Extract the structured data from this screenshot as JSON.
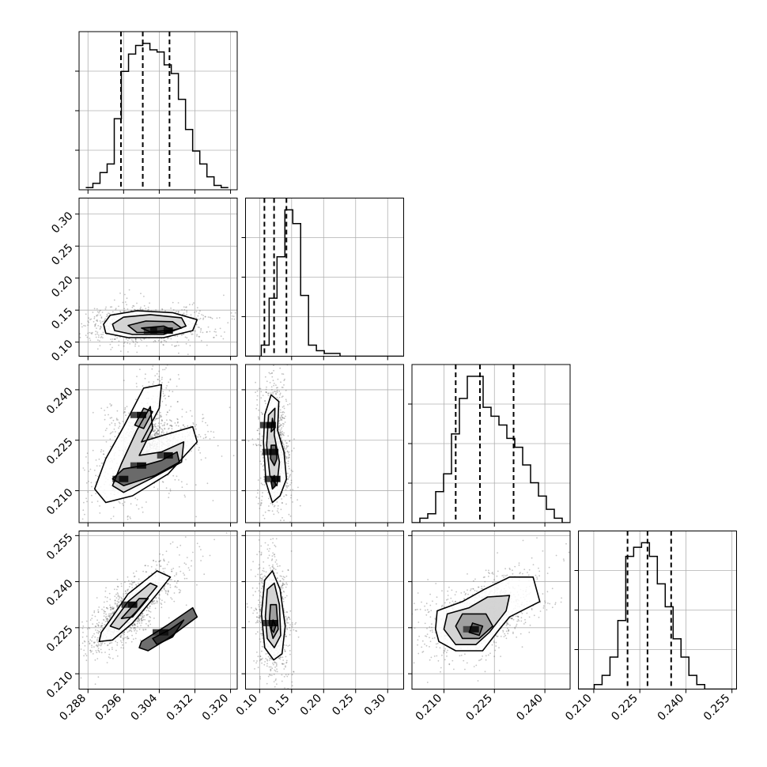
{
  "chart_data": {
    "type": "corner",
    "parameters": [
      {
        "range": [
          0.286,
          0.3215
        ],
        "ticks": [
          0.288,
          0.296,
          0.304,
          0.312,
          0.32
        ],
        "tick_labels": [
          "0.288",
          "0.296",
          "0.304",
          "0.312",
          "0.320"
        ],
        "quantiles": [
          0.2954,
          0.3003,
          0.3063
        ],
        "mean": 0.3008,
        "sd": 0.0062
      },
      {
        "range": [
          0.078,
          0.325
        ],
        "ticks": [
          0.1,
          0.15,
          0.2,
          0.25,
          0.3
        ],
        "tick_labels": [
          "0.10",
          "0.15",
          "0.20",
          "0.25",
          "0.30"
        ],
        "quantiles": [
          0.1075,
          0.1226,
          0.1419
        ],
        "mean": 0.1255,
        "sd": 0.0185
      },
      {
        "range": [
          0.2005,
          0.2475
        ],
        "ticks": [
          0.21,
          0.225,
          0.24
        ],
        "tick_labels": [
          "0.210",
          "0.225",
          "0.240"
        ],
        "quantiles": [
          0.2135,
          0.2207,
          0.2307
        ],
        "mean": 0.2215,
        "sd": 0.0083
      },
      {
        "range": [
          0.205,
          0.2565
        ],
        "ticks": [
          0.21,
          0.225,
          0.24,
          0.255
        ],
        "tick_labels": [
          "0.210",
          "0.225",
          "0.240",
          "0.255"
        ],
        "quantiles": [
          0.221,
          0.2275,
          0.2352
        ],
        "mean": 0.2283,
        "sd": 0.006
      }
    ],
    "histograms": [
      {
        "param": 0,
        "edges_start": 0.2875,
        "bin_width": 0.0016,
        "counts": [
          1,
          3,
          8,
          12,
          33,
          55,
          63,
          67,
          68,
          65,
          64,
          58,
          54,
          42,
          28,
          18,
          12,
          6,
          2,
          1
        ]
      },
      {
        "param": 1,
        "edges_start": 0.078,
        "bin_width": 0.0123,
        "counts": [
          0,
          0,
          4,
          21,
          36,
          53,
          48,
          22,
          4,
          2,
          1,
          1,
          0,
          0,
          0,
          0,
          0,
          0,
          0,
          0
        ]
      },
      {
        "param": 2,
        "edges_start": 0.2005,
        "bin_width": 0.00235,
        "counts": [
          0,
          1,
          2,
          7,
          11,
          20,
          28,
          33,
          33,
          26,
          24,
          22,
          19,
          17,
          13,
          9,
          6,
          3,
          1,
          0
        ]
      },
      {
        "param": 3,
        "edges_start": 0.205,
        "bin_width": 0.00257,
        "counts": [
          0,
          0,
          1,
          3,
          7,
          15,
          29,
          31,
          32,
          29,
          23,
          18,
          11,
          7,
          3,
          1,
          0,
          0,
          0,
          0
        ]
      }
    ],
    "pairs": [
      {
        "x_param": 0,
        "y_param": 1,
        "peaks": [
          [
            0.303,
            0.118
          ],
          [
            0.306,
            0.118
          ]
        ],
        "contours": [
          [
            [
              0.2915,
              0.128
            ],
            [
              0.293,
              0.142
            ],
            [
              0.299,
              0.149
            ],
            [
              0.307,
              0.146
            ],
            [
              0.3125,
              0.135
            ],
            [
              0.3115,
              0.118
            ],
            [
              0.305,
              0.107
            ],
            [
              0.297,
              0.107
            ],
            [
              0.292,
              0.114
            ]
          ],
          [
            [
              0.2935,
              0.128
            ],
            [
              0.296,
              0.139
            ],
            [
              0.302,
              0.143
            ],
            [
              0.309,
              0.138
            ],
            [
              0.31,
              0.125
            ],
            [
              0.305,
              0.112
            ],
            [
              0.298,
              0.112
            ],
            [
              0.294,
              0.118
            ]
          ],
          [
            [
              0.297,
              0.126
            ],
            [
              0.301,
              0.133
            ],
            [
              0.307,
              0.132
            ],
            [
              0.309,
              0.122
            ],
            [
              0.305,
              0.115
            ],
            [
              0.299,
              0.115
            ]
          ],
          [
            [
              0.3,
              0.122
            ],
            [
              0.305,
              0.125
            ],
            [
              0.307,
              0.119
            ],
            [
              0.302,
              0.116
            ]
          ]
        ]
      },
      {
        "x_param": 0,
        "y_param": 2,
        "peaks": [
          [
            0.296,
            0.2135
          ],
          [
            0.3,
            0.2175
          ],
          [
            0.306,
            0.2205
          ],
          [
            0.3,
            0.2325
          ]
        ],
        "contours": [
          [
            [
              0.2895,
              0.2105
            ],
            [
              0.292,
              0.2195
            ],
            [
              0.296,
              0.229
            ],
            [
              0.3005,
              0.2405
            ],
            [
              0.3045,
              0.2415
            ],
            [
              0.304,
              0.2345
            ],
            [
              0.3,
              0.2245
            ],
            [
              0.305,
              0.2265
            ],
            [
              0.3115,
              0.229
            ],
            [
              0.3125,
              0.2245
            ],
            [
              0.306,
              0.215
            ],
            [
              0.298,
              0.2085
            ],
            [
              0.292,
              0.2065
            ]
          ],
          [
            [
              0.2935,
              0.2115
            ],
            [
              0.2955,
              0.218
            ],
            [
              0.299,
              0.228
            ],
            [
              0.302,
              0.235
            ],
            [
              0.3025,
              0.2285
            ],
            [
              0.2995,
              0.2205
            ],
            [
              0.3045,
              0.2215
            ],
            [
              0.3095,
              0.2245
            ],
            [
              0.309,
              0.2185
            ],
            [
              0.302,
              0.2135
            ],
            [
              0.296,
              0.2095
            ]
          ],
          [
            [
              0.2985,
              0.2295
            ],
            [
              0.3005,
              0.2345
            ],
            [
              0.3025,
              0.2335
            ],
            [
              0.3005,
              0.2285
            ]
          ],
          [
            [
              0.2935,
              0.2135
            ],
            [
              0.296,
              0.2165
            ],
            [
              0.3005,
              0.2175
            ],
            [
              0.3045,
              0.219
            ],
            [
              0.308,
              0.2215
            ],
            [
              0.3085,
              0.2185
            ],
            [
              0.303,
              0.2145
            ],
            [
              0.296,
              0.2115
            ]
          ]
        ]
      },
      {
        "x_param": 0,
        "y_param": 3,
        "peaks": [
          [
            0.298,
            0.2325
          ],
          [
            0.305,
            0.2235
          ]
        ],
        "contours": [
          [
            [
              0.291,
              0.2235
            ],
            [
              0.293,
              0.2275
            ],
            [
              0.297,
              0.236
            ],
            [
              0.3035,
              0.2435
            ],
            [
              0.3065,
              0.2415
            ],
            [
              0.3035,
              0.236
            ],
            [
              0.298,
              0.2265
            ],
            [
              0.2935,
              0.221
            ],
            [
              0.2905,
              0.2205
            ]
          ],
          [
            [
              0.293,
              0.2255
            ],
            [
              0.297,
              0.2335
            ],
            [
              0.302,
              0.2395
            ],
            [
              0.3035,
              0.2385
            ],
            [
              0.299,
              0.2305
            ],
            [
              0.295,
              0.2245
            ]
          ],
          [
            [
              0.2955,
              0.228
            ],
            [
              0.2995,
              0.2345
            ],
            [
              0.3015,
              0.2345
            ],
            [
              0.298,
              0.2285
            ]
          ],
          [
            [
              0.3,
              0.2205
            ],
            [
              0.306,
              0.226
            ],
            [
              0.3115,
              0.2315
            ],
            [
              0.3125,
              0.2285
            ],
            [
              0.306,
              0.2215
            ],
            [
              0.3015,
              0.2175
            ],
            [
              0.2995,
              0.2185
            ]
          ],
          [
            [
              0.3025,
              0.2215
            ],
            [
              0.3065,
              0.2245
            ],
            [
              0.3095,
              0.2275
            ],
            [
              0.307,
              0.222
            ],
            [
              0.3035,
              0.2195
            ]
          ]
        ]
      },
      {
        "x_param": 1,
        "y_param": 2,
        "peaks": [
          [
            0.122,
            0.2215
          ],
          [
            0.118,
            0.2295
          ],
          [
            0.125,
            0.2135
          ]
        ],
        "contours": [
          [
            [
              0.106,
              0.2245
            ],
            [
              0.108,
              0.2325
            ],
            [
              0.118,
              0.2385
            ],
            [
              0.13,
              0.2365
            ],
            [
              0.128,
              0.228
            ],
            [
              0.138,
              0.2215
            ],
            [
              0.142,
              0.2135
            ],
            [
              0.132,
              0.2085
            ],
            [
              0.12,
              0.2065
            ],
            [
              0.11,
              0.2125
            ]
          ],
          [
            [
              0.111,
              0.2235
            ],
            [
              0.114,
              0.2325
            ],
            [
              0.124,
              0.2345
            ],
            [
              0.123,
              0.2265
            ],
            [
              0.131,
              0.2185
            ],
            [
              0.127,
              0.2115
            ],
            [
              0.116,
              0.2145
            ]
          ],
          [
            [
              0.118,
              0.2275
            ],
            [
              0.12,
              0.2315
            ],
            [
              0.123,
              0.2285
            ]
          ],
          [
            [
              0.117,
              0.2195
            ],
            [
              0.118,
              0.2235
            ],
            [
              0.125,
              0.2235
            ],
            [
              0.127,
              0.2195
            ],
            [
              0.123,
              0.2175
            ]
          ],
          [
            [
              0.118,
              0.2125
            ],
            [
              0.123,
              0.2145
            ],
            [
              0.125,
              0.2115
            ],
            [
              0.12,
              0.2105
            ]
          ]
        ]
      },
      {
        "x_param": 1,
        "y_param": 3,
        "peaks": [
          [
            0.122,
            0.2265
          ]
        ],
        "contours": [
          [
            [
              0.103,
              0.2295
            ],
            [
              0.108,
              0.2405
            ],
            [
              0.12,
              0.2435
            ],
            [
              0.132,
              0.2375
            ],
            [
              0.14,
              0.2255
            ],
            [
              0.135,
              0.2165
            ],
            [
              0.122,
              0.2145
            ],
            [
              0.108,
              0.2185
            ]
          ],
          [
            [
              0.109,
              0.2285
            ],
            [
              0.112,
              0.2375
            ],
            [
              0.123,
              0.2395
            ],
            [
              0.131,
              0.2325
            ],
            [
              0.133,
              0.2225
            ],
            [
              0.123,
              0.2185
            ],
            [
              0.112,
              0.2215
            ]
          ],
          [
            [
              0.115,
              0.2265
            ],
            [
              0.117,
              0.2325
            ],
            [
              0.126,
              0.2325
            ],
            [
              0.129,
              0.2245
            ],
            [
              0.121,
              0.2215
            ]
          ],
          [
            [
              0.118,
              0.2245
            ],
            [
              0.121,
              0.2275
            ],
            [
              0.125,
              0.2255
            ],
            [
              0.122,
              0.2235
            ]
          ]
        ]
      },
      {
        "x_param": 2,
        "y_param": 3,
        "peaks": [
          [
            0.219,
            0.2245
          ]
        ],
        "contours": [
          [
            [
              0.2075,
              0.2245
            ],
            [
              0.208,
              0.2305
            ],
            [
              0.2155,
              0.2335
            ],
            [
              0.222,
              0.2375
            ],
            [
              0.2295,
              0.2415
            ],
            [
              0.2365,
              0.2415
            ],
            [
              0.2385,
              0.2335
            ],
            [
              0.2295,
              0.2285
            ],
            [
              0.2265,
              0.2245
            ],
            [
              0.2215,
              0.2175
            ],
            [
              0.2135,
              0.2175
            ],
            [
              0.2085,
              0.2205
            ]
          ],
          [
            [
              0.21,
              0.2245
            ],
            [
              0.211,
              0.2295
            ],
            [
              0.2175,
              0.2315
            ],
            [
              0.223,
              0.235
            ],
            [
              0.2295,
              0.2355
            ],
            [
              0.2285,
              0.2305
            ],
            [
              0.2235,
              0.2235
            ],
            [
              0.2195,
              0.2195
            ],
            [
              0.2135,
              0.2195
            ]
          ],
          [
            [
              0.2135,
              0.2255
            ],
            [
              0.2155,
              0.2295
            ],
            [
              0.2225,
              0.2295
            ],
            [
              0.2245,
              0.2255
            ],
            [
              0.2205,
              0.2215
            ],
            [
              0.2155,
              0.2215
            ]
          ],
          [
            [
              0.2175,
              0.2235
            ],
            [
              0.2185,
              0.2265
            ],
            [
              0.2215,
              0.2255
            ],
            [
              0.2205,
              0.2225
            ]
          ]
        ]
      }
    ]
  }
}
